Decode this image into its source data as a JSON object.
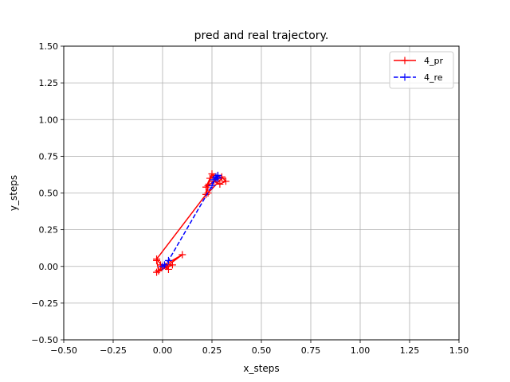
{
  "chart_data": {
    "type": "line",
    "title": "pred and real trajectory.",
    "xlabel": "x_steps",
    "ylabel": "y_steps",
    "xlim": [
      -0.5,
      1.5
    ],
    "ylim": [
      -0.5,
      1.5
    ],
    "x_ticks": [
      -0.5,
      -0.25,
      0.0,
      0.25,
      0.5,
      0.75,
      1.0,
      1.25,
      1.5
    ],
    "y_ticks": [
      -0.5,
      -0.25,
      0.0,
      0.25,
      0.5,
      0.75,
      1.0,
      1.25,
      1.5
    ],
    "x_tick_labels": [
      "−0.50",
      "−0.25",
      "0.00",
      "0.25",
      "0.50",
      "0.75",
      "1.00",
      "1.25",
      "1.50"
    ],
    "y_tick_labels": [
      "−0.50",
      "−0.25",
      "0.00",
      "0.25",
      "0.50",
      "0.75",
      "1.00",
      "1.25",
      "1.50"
    ],
    "grid": true,
    "legend_position": "top-right",
    "series": [
      {
        "name": "4_pr",
        "color": "#ff0000",
        "line_style": "solid",
        "marker": "+",
        "points": [
          [
            -0.03,
            0.04
          ],
          [
            -0.02,
            -0.03
          ],
          [
            -0.03,
            -0.04
          ],
          [
            0.02,
            0.0
          ],
          [
            0.1,
            0.08
          ],
          [
            0.01,
            0.01
          ],
          [
            0.03,
            -0.02
          ],
          [
            -0.01,
            0.01
          ],
          [
            0.05,
            0.01
          ],
          [
            -0.02,
            -0.03
          ],
          [
            0.0,
            0.0
          ],
          [
            -0.03,
            0.05
          ],
          [
            0.22,
            0.49
          ],
          [
            0.23,
            0.55
          ],
          [
            0.25,
            0.63
          ],
          [
            0.26,
            0.61
          ],
          [
            0.24,
            0.6
          ],
          [
            0.22,
            0.54
          ],
          [
            0.27,
            0.59
          ],
          [
            0.3,
            0.61
          ],
          [
            0.32,
            0.58
          ],
          [
            0.29,
            0.56
          ],
          [
            0.26,
            0.58
          ],
          [
            0.28,
            0.62
          ],
          [
            0.3,
            0.6
          ],
          [
            0.23,
            0.5
          ]
        ]
      },
      {
        "name": "4_re",
        "color": "#0000ff",
        "line_style": "dashed",
        "marker": "+",
        "points": [
          [
            0.0,
            0.0
          ],
          [
            0.01,
            0.01
          ],
          [
            0.03,
            0.04
          ],
          [
            0.25,
            0.55
          ],
          [
            0.26,
            0.59
          ],
          [
            0.27,
            0.61
          ],
          [
            0.28,
            0.62
          ],
          [
            0.28,
            0.61
          ],
          [
            0.27,
            0.6
          ],
          [
            0.28,
            0.6
          ]
        ]
      }
    ]
  }
}
